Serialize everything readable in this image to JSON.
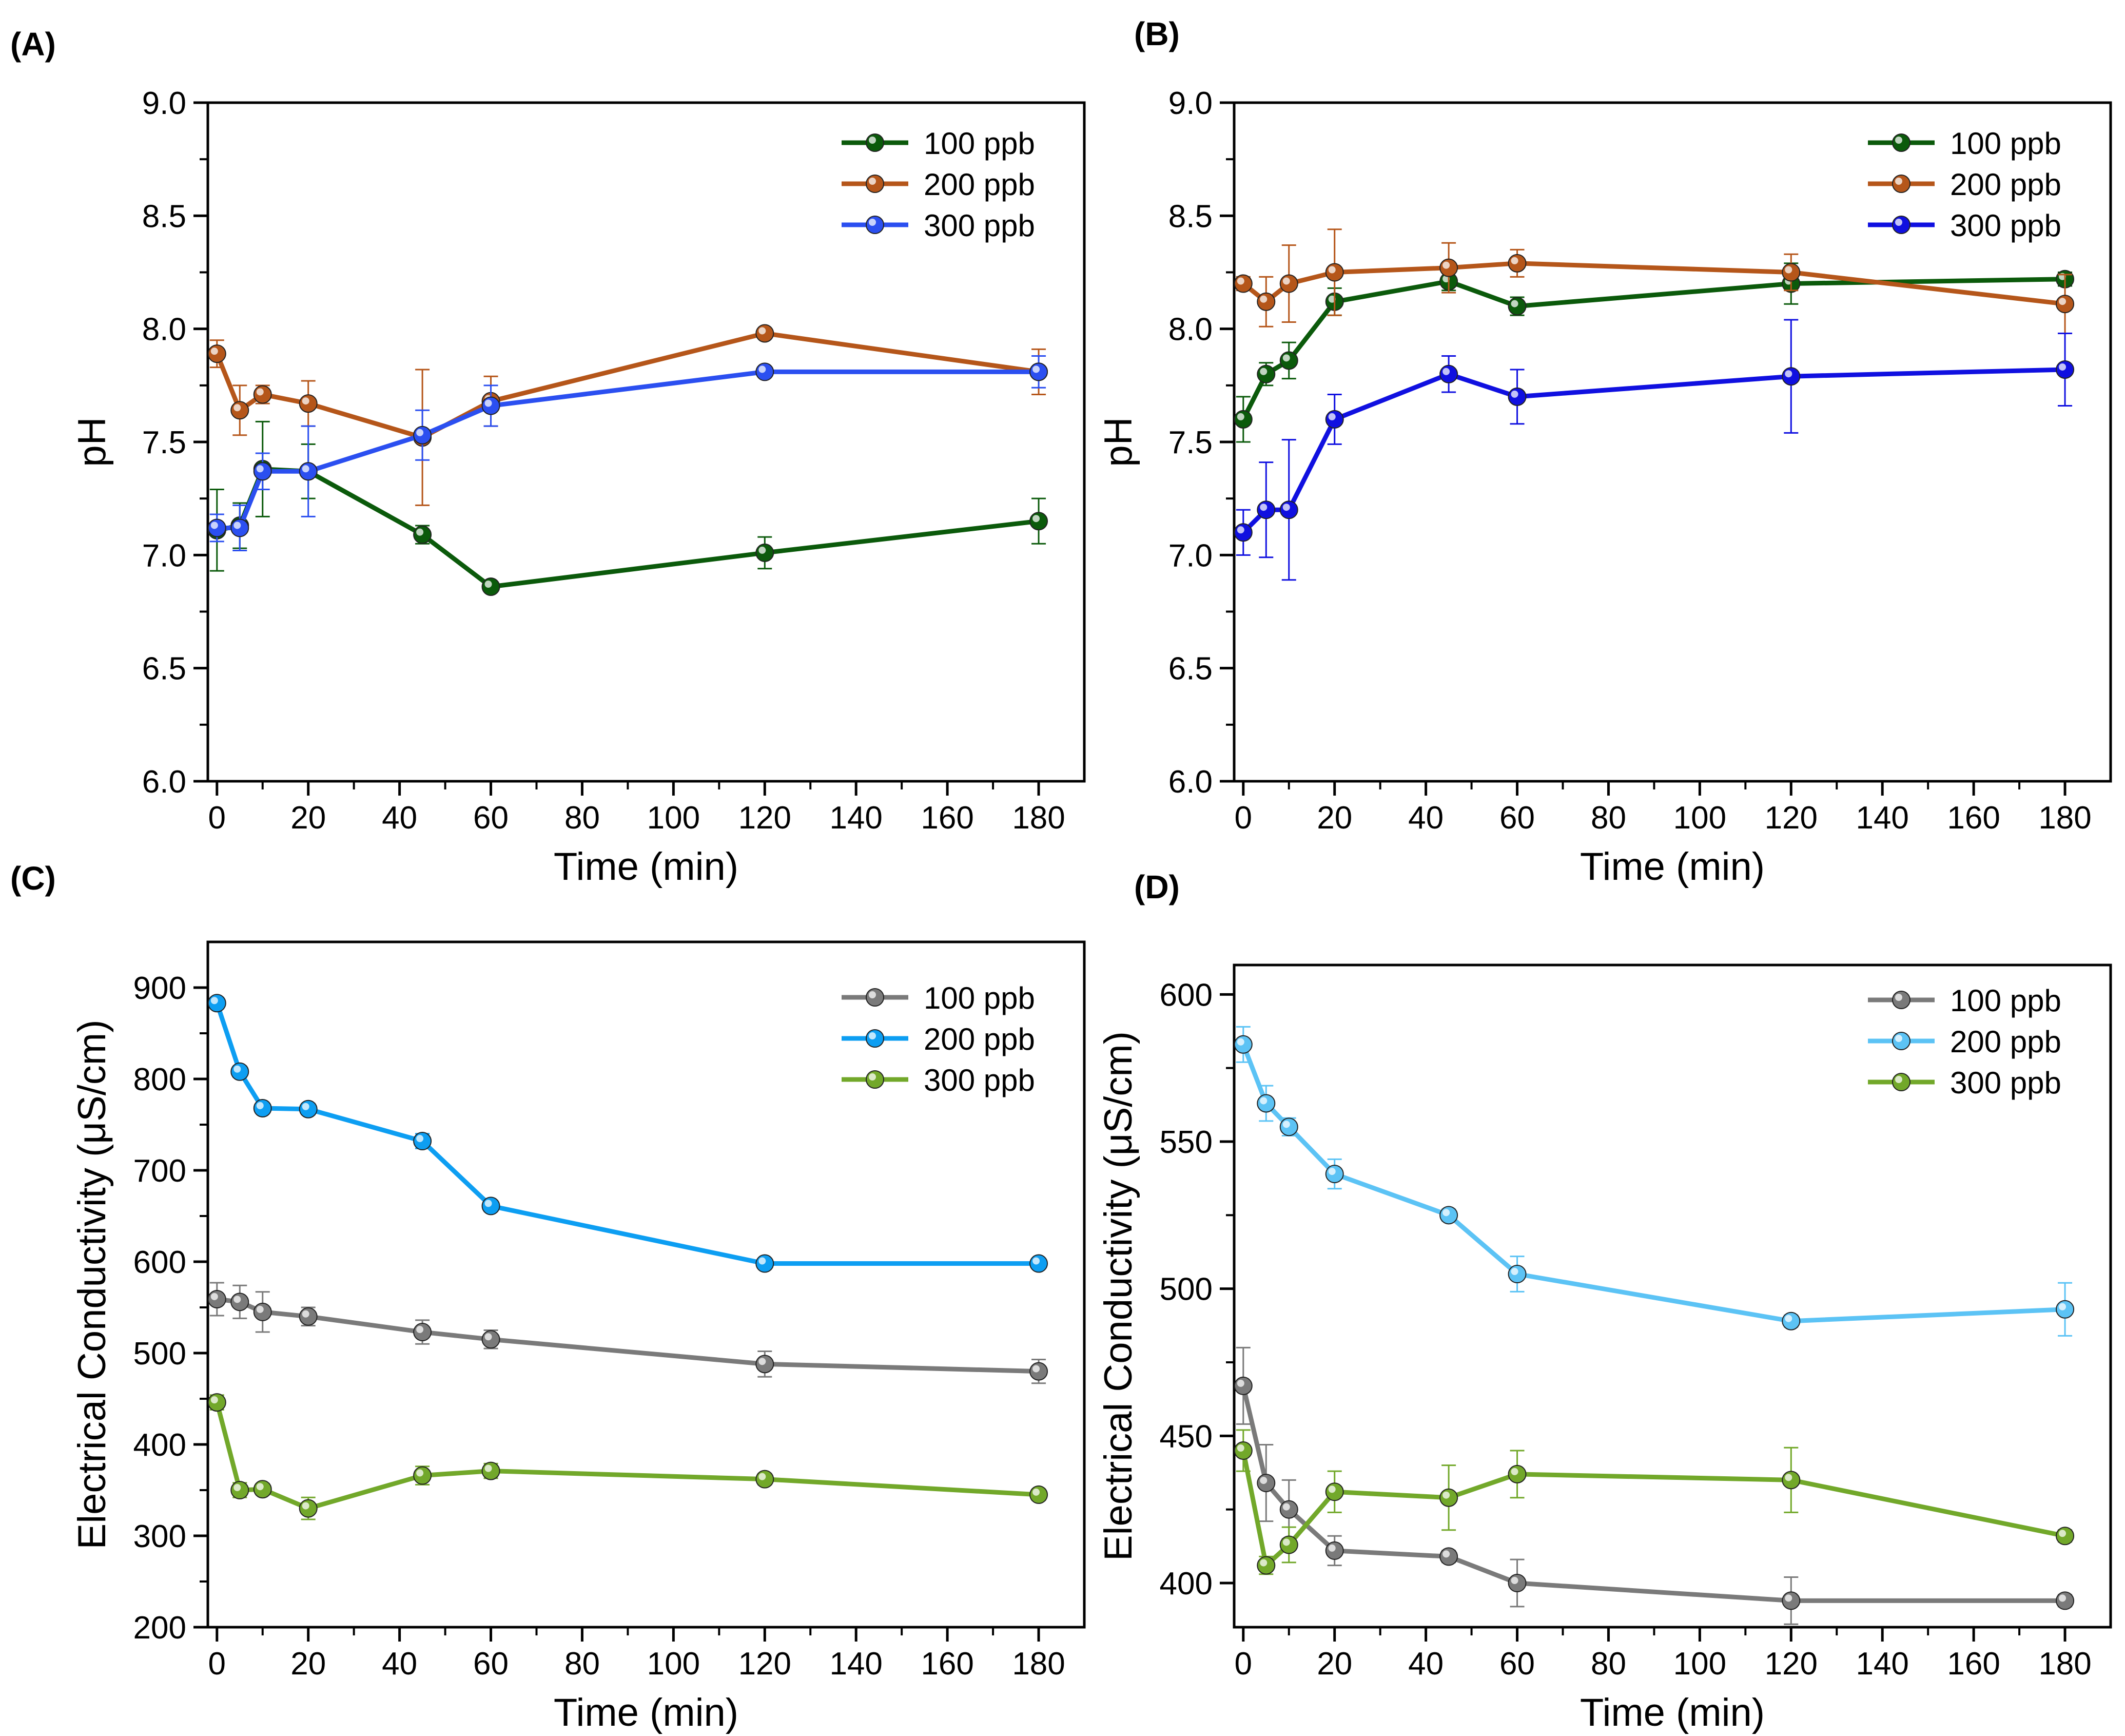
{
  "chart_data": [
    {
      "panel_label": "(A)",
      "type": "line",
      "xlabel": "Time (min)",
      "ylabel": "pH",
      "xlim": [
        -2,
        190
      ],
      "ylim": [
        6.0,
        9.0
      ],
      "xticks": [
        0,
        20,
        40,
        60,
        80,
        100,
        120,
        140,
        160,
        180
      ],
      "yticks": [
        6.0,
        6.5,
        7.0,
        7.5,
        8.0,
        8.5,
        9.0
      ],
      "ytick_labels": [
        "6.0",
        "6.5",
        "7.0",
        "7.5",
        "8.0",
        "8.5",
        "9.0"
      ],
      "x": [
        0,
        5,
        10,
        20,
        45,
        60,
        120,
        180
      ],
      "legend_position": "top-right",
      "series": [
        {
          "name": "100 ppb",
          "color": "#0b5a0b",
          "values": [
            7.11,
            7.13,
            7.38,
            7.37,
            7.09,
            6.86,
            7.01,
            7.15
          ],
          "errors": [
            0.18,
            0.1,
            0.21,
            0.12,
            0.04,
            0.02,
            0.07,
            0.1
          ]
        },
        {
          "name": "200 ppb",
          "color": "#b5561a",
          "values": [
            7.89,
            7.64,
            7.71,
            7.67,
            7.52,
            7.68,
            7.98,
            7.81
          ],
          "errors": [
            0.06,
            0.11,
            0.04,
            0.1,
            0.3,
            0.11,
            0.02,
            0.1
          ]
        },
        {
          "name": "300 ppb",
          "color": "#2b4ff0",
          "values": [
            7.12,
            7.12,
            7.37,
            7.37,
            7.53,
            7.66,
            7.81,
            7.81
          ],
          "errors": [
            0.06,
            0.1,
            0.08,
            0.2,
            0.11,
            0.09,
            0.02,
            0.07
          ]
        }
      ]
    },
    {
      "panel_label": "(B)",
      "type": "line",
      "xlabel": "Time (min)",
      "ylabel": "pH",
      "xlim": [
        -2,
        190
      ],
      "ylim": [
        6.0,
        9.0
      ],
      "xticks": [
        0,
        20,
        40,
        60,
        80,
        100,
        120,
        140,
        160,
        180
      ],
      "yticks": [
        6.0,
        6.5,
        7.0,
        7.5,
        8.0,
        8.5,
        9.0
      ],
      "ytick_labels": [
        "6.0",
        "6.5",
        "7.0",
        "7.5",
        "8.0",
        "8.5",
        "9.0"
      ],
      "x": [
        0,
        5,
        10,
        20,
        45,
        60,
        120,
        180
      ],
      "legend_position": "top-right",
      "series": [
        {
          "name": "100 ppb",
          "color": "#0b5a0b",
          "values": [
            7.6,
            7.8,
            7.86,
            8.12,
            8.21,
            8.1,
            8.2,
            8.22
          ],
          "errors": [
            0.1,
            0.05,
            0.08,
            0.06,
            0.04,
            0.04,
            0.09,
            0.03
          ]
        },
        {
          "name": "200 ppb",
          "color": "#b5561a",
          "values": [
            8.2,
            8.12,
            8.2,
            8.25,
            8.27,
            8.29,
            8.25,
            8.11
          ],
          "errors": [
            0.03,
            0.11,
            0.17,
            0.19,
            0.11,
            0.06,
            0.08,
            0.13
          ]
        },
        {
          "name": "300 ppb",
          "color": "#1010e0",
          "values": [
            7.1,
            7.2,
            7.2,
            7.6,
            7.8,
            7.7,
            7.79,
            7.82
          ],
          "errors": [
            0.1,
            0.21,
            0.31,
            0.11,
            0.08,
            0.12,
            0.25,
            0.16
          ]
        }
      ]
    },
    {
      "panel_label": "(C)",
      "type": "line",
      "xlabel": "Time (min)",
      "ylabel": "Electrical Conductivity (μS/cm)",
      "xlim": [
        -2,
        190
      ],
      "ylim": [
        200,
        950
      ],
      "xticks": [
        0,
        20,
        40,
        60,
        80,
        100,
        120,
        140,
        160,
        180
      ],
      "yticks": [
        200,
        300,
        400,
        500,
        600,
        700,
        800,
        900
      ],
      "ytick_labels": [
        "200",
        "300",
        "400",
        "500",
        "600",
        "700",
        "800",
        "900"
      ],
      "x": [
        0,
        5,
        10,
        20,
        45,
        60,
        120,
        180
      ],
      "legend_position": "top-right",
      "series": [
        {
          "name": "100 ppb",
          "color": "#7a7a7a",
          "values": [
            559,
            556,
            545,
            540,
            523,
            515,
            488,
            480
          ],
          "errors": [
            18,
            18,
            22,
            10,
            13,
            10,
            14,
            13
          ]
        },
        {
          "name": "200 ppb",
          "color": "#0d9ef2",
          "values": [
            883,
            808,
            768,
            767,
            732,
            661,
            598,
            598
          ],
          "errors": [
            6,
            6,
            5,
            6,
            8,
            6,
            5,
            5
          ]
        },
        {
          "name": "300 ppb",
          "color": "#72a82a",
          "values": [
            446,
            350,
            351,
            330,
            366,
            371,
            362,
            345
          ],
          "errors": [
            8,
            8,
            6,
            12,
            10,
            8,
            6,
            6
          ]
        }
      ]
    },
    {
      "panel_label": "(D)",
      "type": "line",
      "xlabel": "Time (min)",
      "ylabel": "Electrical Conductivity (μS/cm)",
      "xlim": [
        -2,
        190
      ],
      "ylim": [
        385,
        610
      ],
      "xticks": [
        0,
        20,
        40,
        60,
        80,
        100,
        120,
        140,
        160,
        180
      ],
      "yticks": [
        400,
        450,
        500,
        550,
        600
      ],
      "ytick_labels": [
        "400",
        "450",
        "500",
        "550",
        "600"
      ],
      "x": [
        0,
        5,
        10,
        20,
        45,
        60,
        120,
        180
      ],
      "legend_position": "top-right",
      "series": [
        {
          "name": "100 ppb",
          "color": "#7a7a7a",
          "values": [
            467,
            434,
            425,
            411,
            409,
            400,
            394,
            394
          ],
          "errors": [
            13,
            13,
            10,
            5,
            2,
            8,
            8,
            2
          ]
        },
        {
          "name": "200 ppb",
          "color": "#5cc3f5",
          "values": [
            583,
            563,
            555,
            539,
            525,
            505,
            489,
            493
          ],
          "errors": [
            6,
            6,
            3,
            5,
            2,
            6,
            2,
            9
          ]
        },
        {
          "name": "300 ppb",
          "color": "#72a82a",
          "values": [
            445,
            406,
            413,
            431,
            429,
            437,
            435,
            416
          ],
          "errors": [
            7,
            3,
            6,
            7,
            11,
            8,
            11,
            2
          ]
        }
      ]
    }
  ]
}
